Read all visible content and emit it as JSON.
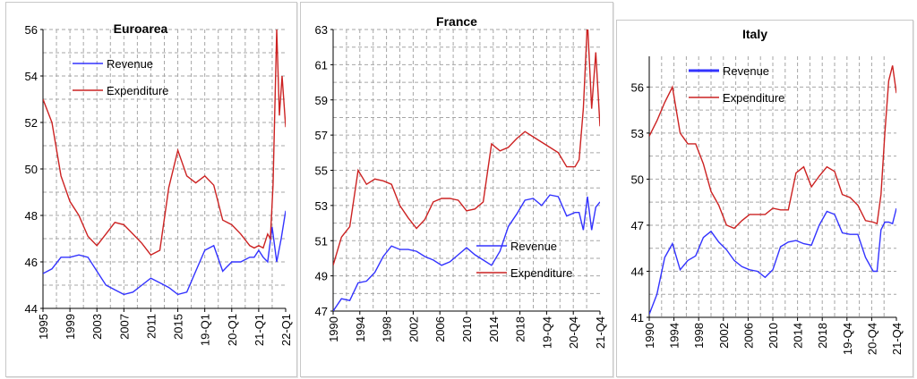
{
  "colors": {
    "revenue": "#3333ff",
    "expenditure": "#cc2222",
    "grid": "#a6a6a6"
  },
  "chart_data": [
    {
      "type": "line",
      "title": "Euroarea",
      "xlabel": "",
      "ylabel": "",
      "ylim": [
        44,
        56
      ],
      "y_ticks": [
        44,
        46,
        48,
        50,
        52,
        54,
        56
      ],
      "x_ticks": [
        "1995",
        "1999",
        "2003",
        "2007",
        "2011",
        "2015",
        "19-Q1",
        "20-Q1",
        "21-Q1",
        "22-Q1"
      ],
      "x_range": [
        1995,
        2022
      ],
      "grid": true,
      "legend": "top-left",
      "series": [
        {
          "name": "Revenue",
          "color": "revenue",
          "x": [
            1995,
            1996,
            1997,
            1998,
            1999,
            2000,
            2001,
            2002,
            2003,
            2004,
            2005,
            2006,
            2007,
            2008,
            2009,
            2010,
            2011,
            2012,
            2013,
            2014,
            2015,
            2016,
            2017,
            2018,
            2018.5,
            2019,
            2019.5,
            2020,
            2020.5,
            2021,
            2021.5,
            2022
          ],
          "y": [
            45.5,
            45.7,
            46.2,
            46.2,
            46.3,
            46.2,
            45.6,
            45.0,
            44.8,
            44.6,
            44.7,
            45.0,
            45.3,
            45.1,
            44.9,
            44.6,
            44.7,
            45.6,
            46.5,
            46.7,
            45.6,
            46.0,
            46.0,
            46.2,
            46.2,
            46.5,
            46.2,
            46.0,
            47.5,
            46.0,
            47.0,
            48.2
          ]
        },
        {
          "name": "Expenditure",
          "color": "expenditure",
          "x": [
            1995,
            1996,
            1997,
            1998,
            1999,
            2000,
            2001,
            2002,
            2003,
            2004,
            2005,
            2006,
            2007,
            2008,
            2009,
            2010,
            2011,
            2012,
            2013,
            2014,
            2015,
            2016,
            2017,
            2018,
            2018.5,
            2019,
            2019.5,
            2020,
            2020.3,
            2020.6,
            2021,
            2021.3,
            2021.6,
            2022
          ],
          "y": [
            53.0,
            52.0,
            49.7,
            48.6,
            48.0,
            47.1,
            46.7,
            47.2,
            47.7,
            47.6,
            47.2,
            46.8,
            46.3,
            46.5,
            49.2,
            50.8,
            49.7,
            49.4,
            49.7,
            49.3,
            47.8,
            47.6,
            47.2,
            46.7,
            46.6,
            46.7,
            46.6,
            47.2,
            47.0,
            49.3,
            56.0,
            52.3,
            54.0,
            51.8
          ]
        }
      ]
    },
    {
      "type": "line",
      "title": "France",
      "xlabel": "",
      "ylabel": "",
      "ylim": [
        47,
        63
      ],
      "y_ticks": [
        47,
        49,
        51,
        53,
        55,
        57,
        59,
        61,
        63
      ],
      "x_ticks": [
        "1990",
        "1994",
        "1998",
        "2002",
        "2006",
        "2010",
        "2014",
        "2018",
        "19-Q4",
        "20-Q4",
        "21-Q4"
      ],
      "x_range": [
        1990,
        2022
      ],
      "grid": true,
      "legend": "bottom-right",
      "series": [
        {
          "name": "Revenue",
          "color": "revenue",
          "x": [
            1990,
            1991,
            1992,
            1993,
            1994,
            1995,
            1996,
            1997,
            1998,
            1999,
            2000,
            2001,
            2002,
            2003,
            2004,
            2005,
            2006,
            2007,
            2008,
            2009,
            2010,
            2011,
            2012,
            2013,
            2014,
            2015,
            2016,
            2017,
            2018,
            2019,
            2019.5,
            2020,
            2020.5,
            2021,
            2021.5,
            2022
          ],
          "y": [
            47.0,
            47.7,
            47.6,
            48.6,
            48.7,
            49.2,
            50.1,
            50.7,
            50.5,
            50.5,
            50.4,
            50.1,
            49.9,
            49.6,
            49.8,
            50.2,
            50.6,
            50.2,
            49.9,
            49.6,
            50.4,
            51.8,
            52.5,
            53.3,
            53.4,
            53.0,
            53.6,
            53.5,
            52.4,
            52.6,
            52.6,
            51.6,
            53.5,
            51.6,
            52.9,
            53.2
          ]
        },
        {
          "name": "Expenditure",
          "color": "expenditure",
          "x": [
            1990,
            1991,
            1992,
            1993,
            1994,
            1995,
            1996,
            1997,
            1998,
            1999,
            2000,
            2001,
            2002,
            2003,
            2004,
            2005,
            2006,
            2007,
            2008,
            2009,
            2010,
            2011,
            2012,
            2013,
            2014,
            2015,
            2016,
            2017,
            2018,
            2019,
            2019.5,
            2020,
            2020.5,
            2021,
            2021.5,
            2022
          ],
          "y": [
            49.6,
            51.2,
            51.8,
            55.0,
            54.2,
            54.5,
            54.4,
            54.2,
            53.0,
            52.3,
            51.7,
            52.2,
            53.2,
            53.4,
            53.4,
            53.3,
            52.7,
            52.8,
            53.2,
            56.5,
            56.1,
            56.3,
            56.8,
            57.2,
            56.9,
            56.6,
            56.3,
            56.0,
            55.2,
            55.2,
            55.6,
            58.5,
            64.0,
            58.5,
            61.7,
            57.5
          ]
        }
      ]
    },
    {
      "type": "line",
      "title": "Italy",
      "xlabel": "",
      "ylabel": "",
      "ylim": [
        41,
        58
      ],
      "y_ticks": [
        41,
        44,
        47,
        50,
        53,
        56
      ],
      "x_ticks": [
        "1990",
        "1994",
        "1998",
        "2002",
        "2006",
        "2010",
        "2014",
        "2018",
        "19-Q4",
        "20-Q4",
        "21-Q4"
      ],
      "x_range": [
        1990,
        2022
      ],
      "grid": true,
      "legend": "top-left",
      "series": [
        {
          "name": "Revenue",
          "color": "revenue",
          "x": [
            1990,
            1991,
            1992,
            1993,
            1994,
            1995,
            1996,
            1997,
            1998,
            1999,
            2000,
            2001,
            2002,
            2003,
            2004,
            2005,
            2006,
            2007,
            2008,
            2009,
            2010,
            2011,
            2012,
            2013,
            2014,
            2015,
            2016,
            2017,
            2018,
            2019,
            2019.5,
            2020,
            2020.5,
            2021,
            2021.5,
            2022
          ],
          "y": [
            41.2,
            42.5,
            44.9,
            45.8,
            44.1,
            44.7,
            45.0,
            46.2,
            46.6,
            45.9,
            45.4,
            44.7,
            44.3,
            44.1,
            44.0,
            43.6,
            44.1,
            45.6,
            45.9,
            46.0,
            45.8,
            45.7,
            47.0,
            47.9,
            47.7,
            46.5,
            46.4,
            46.4,
            44.9,
            44.0,
            44.0,
            46.7,
            47.2,
            47.2,
            47.1,
            48.1
          ]
        },
        {
          "name": "Expenditure",
          "color": "expenditure",
          "x": [
            1990,
            1991,
            1992,
            1993,
            1994,
            1995,
            1996,
            1997,
            1998,
            1999,
            2000,
            2001,
            2002,
            2003,
            2004,
            2005,
            2006,
            2007,
            2008,
            2009,
            2010,
            2011,
            2012,
            2013,
            2014,
            2015,
            2016,
            2017,
            2018,
            2019,
            2019.5,
            2020,
            2020.5,
            2021,
            2021.5,
            2022
          ],
          "y": [
            52.8,
            53.8,
            55.0,
            56.0,
            53.0,
            52.3,
            52.3,
            51.0,
            49.2,
            48.3,
            47.0,
            46.8,
            47.3,
            47.7,
            47.7,
            47.7,
            48.1,
            48.0,
            48.0,
            50.4,
            50.8,
            49.5,
            50.2,
            50.8,
            50.5,
            49.0,
            48.8,
            48.3,
            47.3,
            47.2,
            47.1,
            49.0,
            53.0,
            56.4,
            57.4,
            55.6
          ]
        }
      ]
    }
  ]
}
